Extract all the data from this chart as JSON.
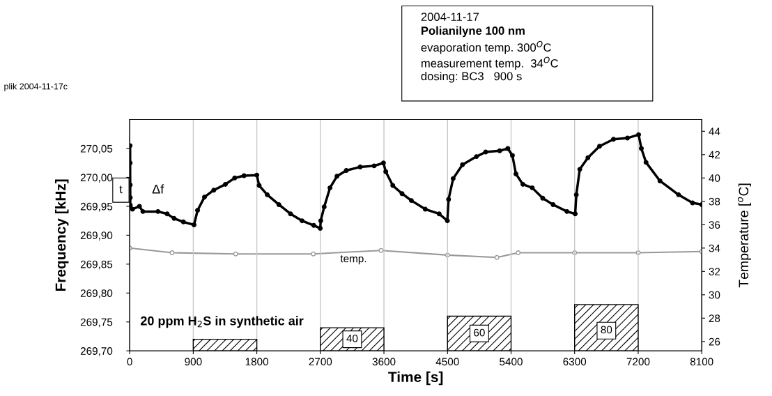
{
  "chart_data": {
    "type": "line",
    "xlabel": "Time [s]",
    "ylabel": "Frequency [kHz]",
    "y2label": "Temperature [$^{o}$C]",
    "xlim": [
      0,
      8100
    ],
    "xticks": [
      0,
      900,
      1800,
      2700,
      3600,
      4500,
      5400,
      6300,
      7200,
      8100
    ],
    "ylim": [
      269.7,
      270.1
    ],
    "yticks": [
      {
        "value": 269.7,
        "label": "269,70"
      },
      {
        "value": 269.75,
        "label": "269,75"
      },
      {
        "value": 269.8,
        "label": "269,80"
      },
      {
        "value": 269.85,
        "label": "269,85"
      },
      {
        "value": 269.9,
        "label": "269,90"
      },
      {
        "value": 269.95,
        "label": "269,95"
      },
      {
        "value": 270.0,
        "label": "270,00"
      },
      {
        "value": 270.05,
        "label": "270,05"
      }
    ],
    "y2lim": [
      25.2,
      45
    ],
    "y2ticks": [
      26,
      28,
      30,
      32,
      34,
      36,
      38,
      40,
      42,
      44
    ],
    "grid": "x",
    "legend": false,
    "series": [
      {
        "marker": "circle",
        "color": "#000000",
        "x": [
          6,
          6,
          7,
          8,
          8,
          39,
          138,
          187,
          400,
          530,
          629,
          760,
          911,
          961,
          1059,
          1191,
          1355,
          1487,
          1619,
          1800,
          1833,
          1948,
          2112,
          2277,
          2441,
          2606,
          2698,
          2705,
          2754,
          2836,
          2935,
          3067,
          3264,
          3461,
          3593,
          3626,
          3725,
          3856,
          3988,
          4185,
          4382,
          4498,
          4515,
          4580,
          4712,
          4910,
          5041,
          5239,
          5354,
          5419,
          5469,
          5568,
          5700,
          5848,
          5995,
          6192,
          6308,
          6324,
          6373,
          6488,
          6653,
          6850,
          7048,
          7206,
          7245,
          7311,
          7508,
          7771,
          7969,
          8100
        ],
        "values": [
          270.055,
          270.025,
          269.987,
          269.965,
          269.952,
          269.945,
          269.95,
          269.941,
          269.941,
          269.937,
          269.929,
          269.923,
          269.918,
          269.943,
          269.966,
          269.978,
          269.988,
          269.999,
          270.003,
          270.004,
          269.986,
          269.97,
          269.953,
          269.937,
          269.925,
          269.917,
          269.912,
          269.925,
          269.949,
          269.982,
          270.002,
          270.012,
          270.018,
          270.02,
          270.025,
          270.01,
          269.986,
          269.972,
          269.96,
          269.945,
          269.937,
          269.925,
          269.962,
          269.998,
          270.022,
          270.036,
          270.044,
          270.046,
          270.05,
          270.038,
          270.006,
          269.988,
          269.982,
          269.964,
          269.953,
          269.941,
          269.937,
          269.97,
          270.014,
          270.034,
          270.054,
          270.066,
          270.068,
          270.074,
          270.05,
          270.026,
          269.994,
          269.97,
          269.956,
          269.953
        ]
      },
      {
        "type": "line",
        "marker": "circle",
        "color": "#999999",
        "axis": "y2",
        "x": [
          0,
          600,
          1500,
          2600,
          3560,
          4500,
          5200,
          5500,
          6300,
          7200,
          8100
        ],
        "values": [
          34.0,
          33.6,
          33.5,
          33.5,
          33.8,
          33.4,
          33.2,
          33.6,
          33.6,
          33.6,
          33.7
        ]
      },
      {
        "type": "bar",
        "color": "#000000",
        "x": [
          1350,
          3150,
          4950,
          6750
        ],
        "base": [
          269.7,
          269.7,
          269.7,
          269.7
        ],
        "values": [
          0.02,
          0.04,
          0.06,
          0.08
        ]
      }
    ],
    "annotations": [
      "2004-11-17",
      "Polianilyne 100 nm",
      "evaporation temp. 300$^{O}$C",
      "measurement temp.  34$^{O}$C",
      "dosing: BC3   900 s",
      "plik 2004-11-17c",
      "temp.",
      "20 ppm H$_{2}$S in synthetic air",
      "t",
      "Δf",
      {
        "text": "40",
        "x": 3150,
        "y": 269.72
      },
      {
        "text": "60",
        "x": 4950,
        "y": 269.73
      },
      {
        "text": "80",
        "x": 6750,
        "y": 269.735
      }
    ]
  }
}
